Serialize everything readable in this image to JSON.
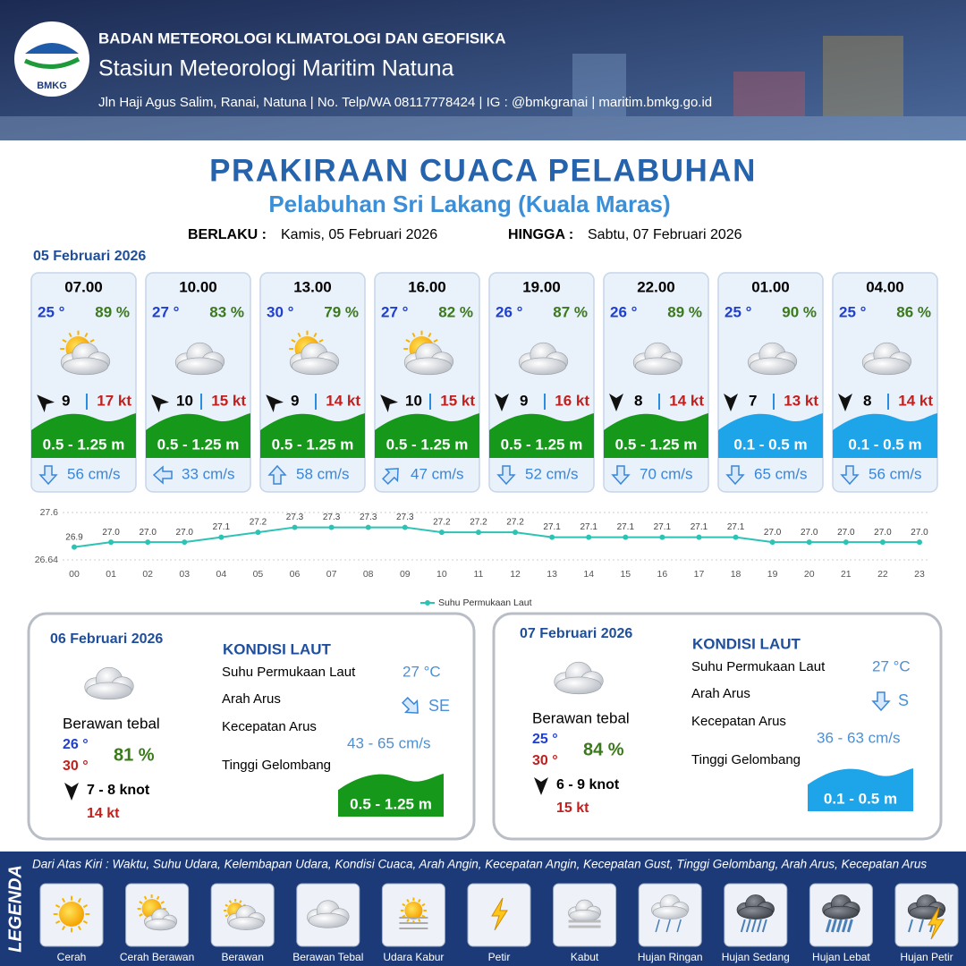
{
  "header": {
    "logo": "BMKG",
    "org": "BADAN METEOROLOGI KLIMATOLOGI DAN GEOFISIKA",
    "station": "Stasiun Meteorologi Maritim Natuna",
    "address": "Jln Haji Agus Salim, Ranai, Natuna  | No. Telp/WA 08117778424 | IG : @bmkgranai | maritim.bmkg.go.id"
  },
  "title": "PRAKIRAAN CUACA PELABUHAN",
  "subtitle": "Pelabuhan Sri Lakang (Kuala Maras)",
  "validity": {
    "from_label": "BERLAKU :",
    "from": "Kamis, 05 Februari 2026",
    "to_label": "HINGGA :",
    "to": "Sabtu, 07 Februari 2026"
  },
  "day1": {
    "date": "05 Februari 2026",
    "forecasts": [
      {
        "time": "07.00",
        "temp": "25 °",
        "humidity": "89 %",
        "wind": "9",
        "gust": "17 kt",
        "wave": "0.5 - 1.25 m",
        "wave_color": "#16991a",
        "current": "56 cm/s"
      },
      {
        "time": "10.00",
        "temp": "27 °",
        "humidity": "83 %",
        "wind": "10",
        "gust": "15 kt",
        "wave": "0.5 - 1.25 m",
        "wave_color": "#16991a",
        "current": "33 cm/s"
      },
      {
        "time": "13.00",
        "temp": "30 °",
        "humidity": "79 %",
        "wind": "9",
        "gust": "14 kt",
        "wave": "0.5 - 1.25 m",
        "wave_color": "#16991a",
        "current": "58 cm/s"
      },
      {
        "time": "16.00",
        "temp": "27 °",
        "humidity": "82 %",
        "wind": "10",
        "gust": "15 kt",
        "wave": "0.5 - 1.25 m",
        "wave_color": "#16991a",
        "current": "47 cm/s"
      },
      {
        "time": "19.00",
        "temp": "26 °",
        "humidity": "87 %",
        "wind": "9",
        "gust": "16 kt",
        "wave": "0.5 - 1.25 m",
        "wave_color": "#16991a",
        "current": "52 cm/s"
      },
      {
        "time": "22.00",
        "temp": "26 °",
        "humidity": "89 %",
        "wind": "8",
        "gust": "14 kt",
        "wave": "0.5 - 1.25 m",
        "wave_color": "#16991a",
        "current": "70 cm/s"
      },
      {
        "time": "01.00",
        "temp": "25 °",
        "humidity": "90 %",
        "wind": "7",
        "gust": "13 kt",
        "wave": "0.1 - 0.5 m",
        "wave_color": "#1ea4e8",
        "current": "65 cm/s"
      },
      {
        "time": "04.00",
        "temp": "25 °",
        "humidity": "86 %",
        "wind": "8",
        "gust": "14 kt",
        "wave": "0.1 - 0.5 m",
        "wave_color": "#1ea4e8",
        "current": "56 cm/s"
      }
    ]
  },
  "chart_data": {
    "type": "line",
    "categories": [
      "00",
      "01",
      "02",
      "03",
      "04",
      "05",
      "06",
      "07",
      "08",
      "09",
      "10",
      "11",
      "12",
      "13",
      "14",
      "15",
      "16",
      "17",
      "18",
      "19",
      "20",
      "21",
      "22",
      "23"
    ],
    "series": [
      {
        "name": "Suhu Permukaan Laut",
        "color": "#2cc3b5",
        "values": [
          26.9,
          27.0,
          27.0,
          27.0,
          27.1,
          27.2,
          27.3,
          27.3,
          27.3,
          27.3,
          27.2,
          27.2,
          27.2,
          27.1,
          27.1,
          27.1,
          27.1,
          27.1,
          27.1,
          27.0,
          27.0,
          27.0,
          27.0,
          27.0
        ],
        "value_labels": [
          "26.9",
          "27.0",
          "27.0",
          "27.0",
          "27.1",
          "27.2",
          "27.3",
          "27.3",
          "27.3",
          "27.3",
          "27.2",
          "27.2",
          "27.2",
          "27.1",
          "27.1",
          "27.1",
          "27.1",
          "27.1",
          "27.1",
          "27.0",
          "27.0",
          "27.0",
          "27.0",
          "27.0"
        ]
      }
    ],
    "ylim": [
      26.64,
      27.6
    ],
    "yticks": [
      26.64,
      27.6
    ],
    "grid": true,
    "legend": "bottom"
  },
  "days": [
    {
      "date": "06 Februari 2026",
      "condition": "Berawan tebal",
      "temp_min": "26 °",
      "temp_max": "30 °",
      "humidity": "81 %",
      "wind": "7  - 8 knot",
      "gust": "14 kt",
      "sea_title": "KONDISI LAUT",
      "sst_label": "Suhu Permukaan Laut",
      "sst": "27 °C",
      "dir_label": "Arah Arus",
      "dir": "SE",
      "speed_label": "Kecepatan Arus",
      "speed": "43 - 65 cm/s",
      "wave_label": "Tinggi Gelombang",
      "wave": "0.5 - 1.25 m",
      "wave_color": "#16991a"
    },
    {
      "date": "07 Februari 2026",
      "condition": "Berawan tebal",
      "temp_min": "25 °",
      "temp_max": "30 °",
      "humidity": "84 %",
      "wind": "6 - 9 knot",
      "gust": "15 kt",
      "sea_title": "KONDISI LAUT",
      "sst_label": "Suhu Permukaan Laut",
      "sst": "27 °C",
      "dir_label": "Arah Arus",
      "dir": "S",
      "speed_label": "Kecepatan Arus",
      "speed": "36 - 63 cm/s",
      "wave_label": "Tinggi Gelombang",
      "wave": "0.1 - 0.5 m",
      "wave_color": "#1ea4e8"
    }
  ],
  "legend": {
    "title": "LEGENDA",
    "description": "Dari Atas Kiri : Waktu, Suhu Udara, Kelembapan Udara, Kondisi Cuaca, Arah Angin, Kecepatan Angin, Kecepatan Gust, Tinggi Gelombang, Arah Arus, Kecepatan Arus",
    "items": [
      "Cerah",
      "Cerah Berawan",
      "Berawan",
      "Berawan Tebal",
      "Udara Kabur",
      "Petir",
      "Kabut",
      "Hujan Ringan",
      "Hujan Sedang",
      "Hujan Lebat",
      "Hujan Petir"
    ]
  }
}
